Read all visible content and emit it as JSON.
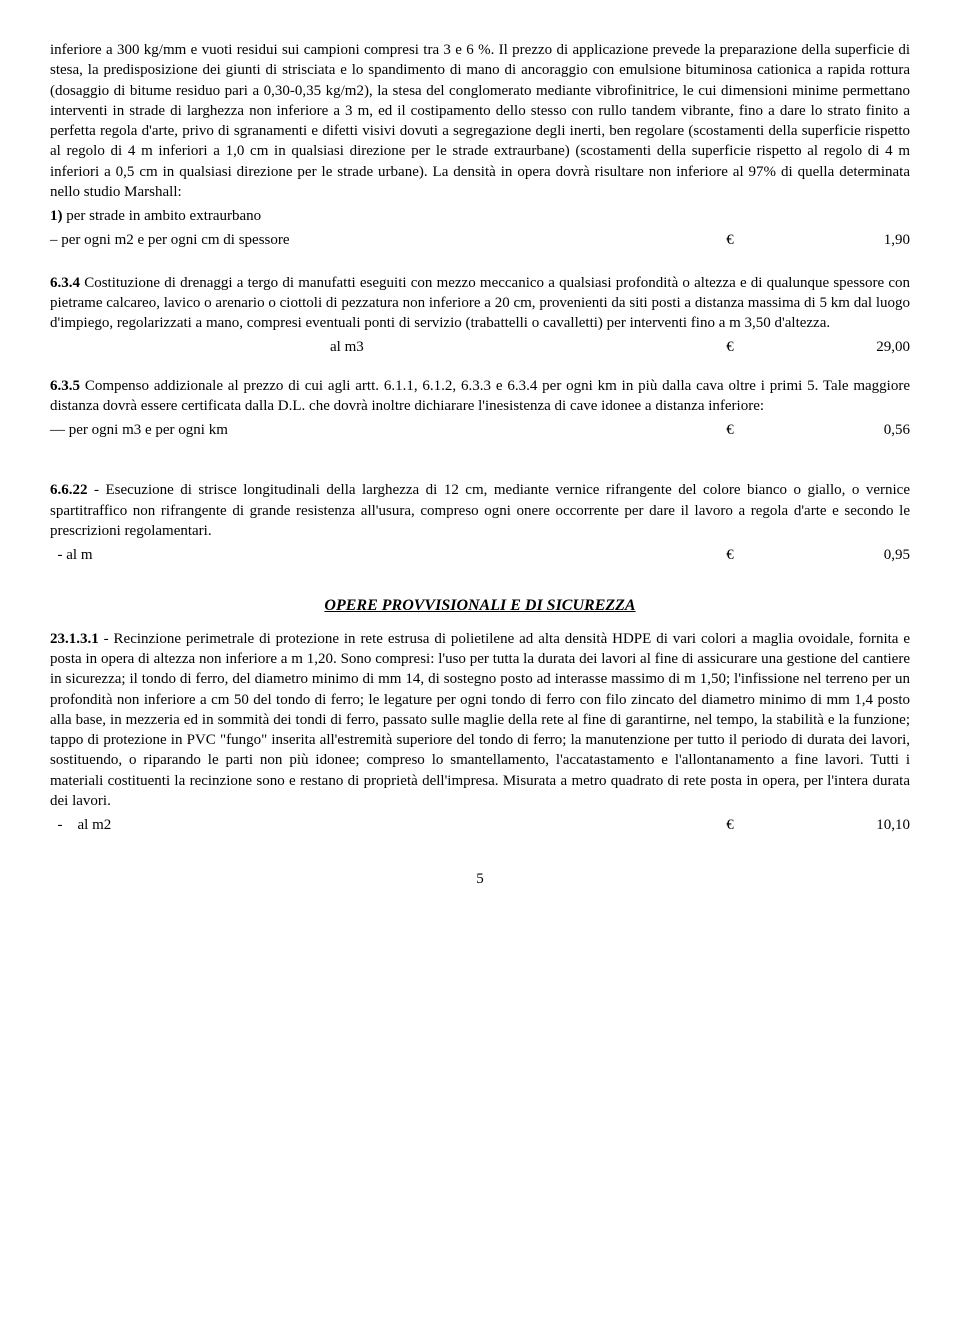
{
  "p1": {
    "text": "inferiore a 300 kg/mm e vuoti residui sui campioni compresi tra 3 e 6 %. Il prezzo di applicazione prevede la preparazione della superficie di stesa, la predisposizione dei giunti di strisciata e lo spandimento di mano di ancoraggio con emulsione bituminosa cationica a rapida rottura (dosaggio di bitume residuo pari a 0,30-0,35 kg/m2), la stesa del conglomerato mediante vibrofinitrice, le cui dimensioni minime permettano interventi in strade di larghezza non inferiore a 3 m, ed il costipamento dello stesso con rullo tandem vibrante, fino a dare lo strato finito a perfetta regola d'arte, privo di sgranamenti e difetti visivi dovuti a segregazione degli inerti, ben regolare (scostamenti della superficie rispetto al regolo di 4 m inferiori a 1,0 cm in qualsiasi direzione per le strade extraurbane) (scostamenti della superficie rispetto al regolo di 4 m inferiori a 0,5 cm in qualsiasi direzione per le strade urbane). La densità in opera dovrà risultare non inferiore al 97% di quella determinata nello studio Marshall:",
    "line_bold": "1)",
    "line_rest": " per strade in ambito extraurbano",
    "price_label": "– per ogni m2 e per ogni cm di spessore",
    "price_eur": "€",
    "price_val": "1,90"
  },
  "p634": {
    "code": "6.3.4",
    "text": " Costituzione di drenaggi a tergo di manufatti eseguiti con mezzo meccanico a qualsiasi profondità o altezza e di qualunque spessore con pietrame calcareo, lavico o arenario o ciottoli di pezzatura non inferiore a 20 cm, provenienti da siti posti a distanza massima di 5 km dal luogo d'impiego, regolarizzati a mano, compresi eventuali ponti di servizio (trabattelli o cavalletti) per interventi fino a m 3,50 d'altezza.",
    "price_label": "al m3",
    "price_eur": "€",
    "price_val": "29,00"
  },
  "p635": {
    "code": "6.3.5",
    "text": " Compenso addizionale al prezzo di cui agli artt. 6.1.1, 6.1.2, 6.3.3 e 6.3.4 per ogni km in più dalla cava oltre i primi 5. Tale maggiore distanza dovrà essere certificata dalla D.L. che dovrà inoltre dichiarare l'inesistenza di cave idonee a distanza inferiore:",
    "price_label": "— per ogni m3 e per ogni km",
    "price_eur": "€",
    "price_val": "0,56"
  },
  "p6622": {
    "code": "6.6.22",
    "text": " - Esecuzione di strisce longitudinali della larghezza di 12 cm, mediante vernice rifrangente del colore bianco o giallo, o vernice spartitraffico non rifrangente di grande resistenza all'usura, compreso ogni onere occorrente per dare il lavoro a regola d'arte e secondo le prescrizioni regolamentari.",
    "price_label": "  - al m",
    "price_eur": "€",
    "price_val": "0,95"
  },
  "section_title": "OPERE  PROVVISIONALI  E  DI SICUREZZA",
  "p23131": {
    "code": "23.1.3.1",
    "text": " - Recinzione perimetrale di protezione in rete estrusa di polietilene ad alta densità HDPE di vari colori a maglia ovoidale, fornita e posta in opera di altezza non inferiore a m 1,20. Sono compresi: l'uso per tutta la durata dei lavori al fine di assicurare una gestione del cantiere in sicurezza; il tondo di ferro, del diametro minimo di mm 14, di sostegno posto ad interasse massimo di m 1,50; l'infissione nel terreno per un profondità non inferiore a cm 50 del tondo di ferro; le legature per ogni tondo di ferro con filo zincato del diametro minimo di mm 1,4 posto alla base, in mezzeria ed in sommità dei tondi di ferro, passato sulle maglie della rete al fine di garantirne, nel tempo, la stabilità e la funzione; tappo di protezione in PVC \"fungo\" inserita all'estremità superiore del tondo di ferro; la manutenzione per tutto il periodo di durata dei lavori, sostituendo, o riparando le parti non più idonee; compreso lo smantellamento, l'accatastamento e l'allontanamento a fine lavori. Tutti i materiali costituenti la recinzione sono e restano di proprietà dell'impresa. Misurata a metro quadrato di rete posta in opera, per l'intera durata dei lavori.",
    "price_label": "  -    al m2",
    "price_eur": "€",
    "price_val": "10,10"
  },
  "page_number": "5"
}
